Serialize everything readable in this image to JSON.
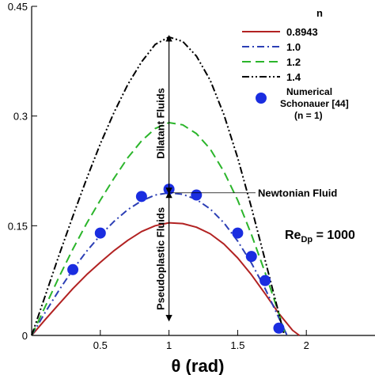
{
  "chart_data": {
    "type": "line",
    "xlabel": "θ (rad)",
    "ylabel": "",
    "xlim": [
      0,
      2.5
    ],
    "ylim": [
      0,
      0.45
    ],
    "x_ticks": [
      {
        "value": 0.5,
        "label": "0.5"
      },
      {
        "value": 1.0,
        "label": "1"
      },
      {
        "value": 1.5,
        "label": "1.5"
      },
      {
        "value": 2.0,
        "label": "2"
      }
    ],
    "y_ticks": [
      {
        "value": 0.0,
        "label": "0"
      },
      {
        "value": 0.15,
        "label": "0.15"
      },
      {
        "value": 0.3,
        "label": "0.3"
      },
      {
        "value": 0.45,
        "label": "0.45"
      }
    ],
    "legend": {
      "title": "n",
      "placement": "top-right",
      "entries": [
        {
          "label": "0.8943",
          "color": "#b22222",
          "style": "solid"
        },
        {
          "label": "1.0",
          "color": "#2c3fb5",
          "style": "dash-dot"
        },
        {
          "label": "1.2",
          "color": "#2bb52b",
          "style": "dashed"
        },
        {
          "label": "1.4",
          "color": "#000000",
          "style": "dash-dot-dot"
        },
        {
          "label_lines": [
            "Numerical",
            "Schonauer [44]",
            "(n = 1)"
          ],
          "color": "#1a2de0",
          "style": "marker"
        }
      ]
    },
    "series": [
      {
        "color": "#b22222",
        "style": "solid",
        "x": [
          0,
          0.1,
          0.2,
          0.3,
          0.4,
          0.5,
          0.6,
          0.7,
          0.8,
          0.9,
          1.0,
          1.1,
          1.2,
          1.3,
          1.4,
          1.5,
          1.6,
          1.7,
          1.8,
          1.9,
          1.95
        ],
        "y": [
          0,
          0.022,
          0.043,
          0.064,
          0.083,
          0.1,
          0.116,
          0.13,
          0.142,
          0.15,
          0.154,
          0.153,
          0.148,
          0.139,
          0.125,
          0.106,
          0.083,
          0.057,
          0.03,
          0.007,
          0
        ]
      },
      {
        "color": "#2c3fb5",
        "style": "dash-dot",
        "x": [
          0,
          0.1,
          0.2,
          0.3,
          0.4,
          0.5,
          0.6,
          0.7,
          0.8,
          0.9,
          1.0,
          1.1,
          1.2,
          1.3,
          1.4,
          1.5,
          1.6,
          1.7,
          1.8,
          1.86
        ],
        "y": [
          0,
          0.032,
          0.062,
          0.09,
          0.115,
          0.137,
          0.156,
          0.172,
          0.184,
          0.192,
          0.195,
          0.193,
          0.186,
          0.173,
          0.154,
          0.129,
          0.099,
          0.064,
          0.024,
          0
        ]
      },
      {
        "color": "#2bb52b",
        "style": "dashed",
        "x": [
          0,
          0.1,
          0.2,
          0.3,
          0.4,
          0.5,
          0.6,
          0.7,
          0.8,
          0.9,
          1.0,
          1.1,
          1.2,
          1.3,
          1.4,
          1.5,
          1.6,
          1.7,
          1.8,
          1.85
        ],
        "y": [
          0,
          0.04,
          0.08,
          0.118,
          0.153,
          0.185,
          0.215,
          0.243,
          0.266,
          0.283,
          0.291,
          0.288,
          0.276,
          0.255,
          0.224,
          0.185,
          0.138,
          0.086,
          0.03,
          0
        ]
      },
      {
        "color": "#000000",
        "style": "dash-dot-dot",
        "x": [
          0,
          0.1,
          0.2,
          0.3,
          0.4,
          0.5,
          0.6,
          0.7,
          0.8,
          0.9,
          1.0,
          1.1,
          1.2,
          1.3,
          1.4,
          1.5,
          1.6,
          1.7,
          1.8,
          1.84
        ],
        "y": [
          0,
          0.055,
          0.11,
          0.163,
          0.214,
          0.262,
          0.305,
          0.343,
          0.374,
          0.398,
          0.408,
          0.402,
          0.382,
          0.349,
          0.302,
          0.243,
          0.175,
          0.103,
          0.03,
          0
        ]
      }
    ],
    "markers": {
      "color": "#1a2de0",
      "x": [
        0.3,
        0.5,
        0.8,
        1.0,
        1.2,
        1.5,
        1.6,
        1.7,
        1.8
      ],
      "y": [
        0.09,
        0.14,
        0.19,
        0.2,
        0.192,
        0.14,
        0.108,
        0.075,
        0.01
      ]
    },
    "annotations": {
      "dilatant": "Dilatant Fluids",
      "pseudoplastic": "Pseudoplastic Fluids",
      "newtonian": "Newtonian Fluid",
      "re_main": "Re",
      "re_sub": "Dp",
      "re_value": " = 1000",
      "arrow_x": 1.0,
      "arrow_top_y": 0.41,
      "arrow_mid_y": 0.195,
      "arrow_bottom_y": 0.02,
      "newtonian_line_y": 0.195,
      "newtonian_line_x_end": 1.63
    }
  }
}
